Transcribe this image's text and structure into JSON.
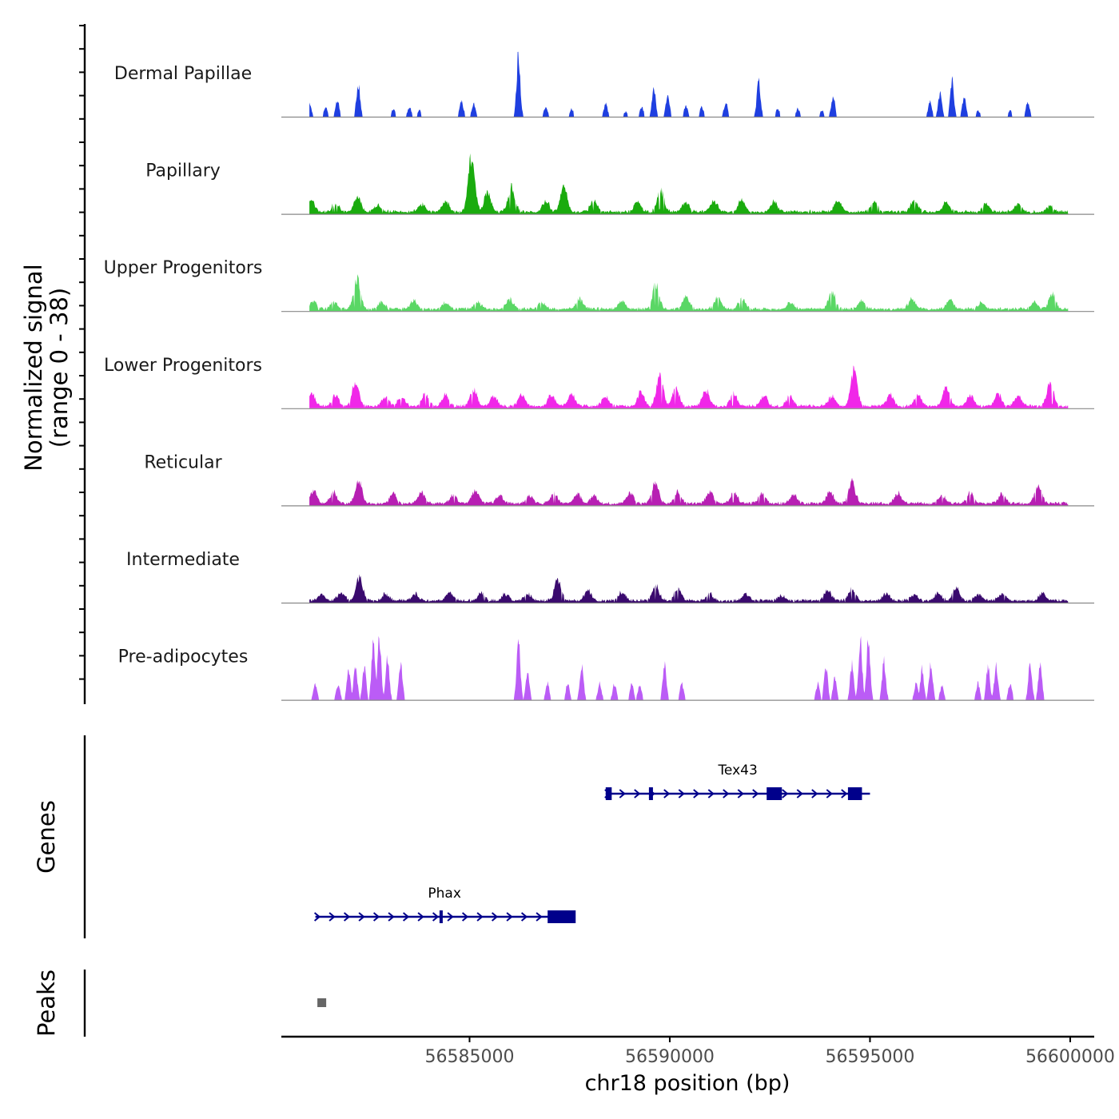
{
  "chart_data": {
    "type": "area",
    "title": "",
    "y_axis_label": "Normalized signal",
    "y_axis_sublabel": "(range 0 - 38)",
    "ylim": [
      0,
      38
    ],
    "xlabel": "chr18 position (bp)",
    "xlim": [
      56580300,
      56600600
    ],
    "x_ticks": [
      56585000,
      56590000,
      56595000,
      56600000
    ],
    "x_tick_labels": [
      "56585000",
      "56590000",
      "56595000",
      "56600000"
    ],
    "tracks": [
      {
        "name": "Dermal Papillae",
        "color": "#1f3fe0",
        "peaks": [
          [
            56581000,
            9
          ],
          [
            56581400,
            6
          ],
          [
            56581700,
            10
          ],
          [
            56582220,
            21
          ],
          [
            56583100,
            5
          ],
          [
            56583500,
            6
          ],
          [
            56583750,
            4
          ],
          [
            56584800,
            10
          ],
          [
            56585100,
            8
          ],
          [
            56586220,
            38
          ],
          [
            56586900,
            6
          ],
          [
            56587550,
            5
          ],
          [
            56588400,
            8
          ],
          [
            56588900,
            3
          ],
          [
            56589300,
            6
          ],
          [
            56589600,
            18
          ],
          [
            56589950,
            13
          ],
          [
            56590400,
            7
          ],
          [
            56590800,
            6
          ],
          [
            56591400,
            9
          ],
          [
            56592220,
            22
          ],
          [
            56592700,
            5
          ],
          [
            56593200,
            5
          ],
          [
            56593800,
            4
          ],
          [
            56594080,
            13
          ],
          [
            56596500,
            9
          ],
          [
            56596750,
            14
          ],
          [
            56597050,
            22
          ],
          [
            56597350,
            12
          ],
          [
            56597700,
            4
          ],
          [
            56598500,
            4
          ],
          [
            56598940,
            9
          ]
        ]
      },
      {
        "name": "Papillary",
        "color": "#1aab0e",
        "peaks": [
          [
            56581050,
            7
          ],
          [
            56581650,
            5
          ],
          [
            56582200,
            9
          ],
          [
            56582700,
            4
          ],
          [
            56583800,
            5
          ],
          [
            56584400,
            7
          ],
          [
            56585050,
            33
          ],
          [
            56585450,
            12
          ],
          [
            56586050,
            15
          ],
          [
            56586900,
            7
          ],
          [
            56587350,
            16
          ],
          [
            56588100,
            7
          ],
          [
            56589200,
            6
          ],
          [
            56589770,
            13
          ],
          [
            56590400,
            6
          ],
          [
            56591100,
            7
          ],
          [
            56591800,
            7
          ],
          [
            56592600,
            6
          ],
          [
            56594200,
            7
          ],
          [
            56595100,
            6
          ],
          [
            56596100,
            7
          ],
          [
            56596900,
            6
          ],
          [
            56597900,
            5
          ],
          [
            56598700,
            5
          ],
          [
            56599500,
            3
          ]
        ]
      },
      {
        "name": "Upper Progenitors",
        "color": "#5ad765",
        "peaks": [
          [
            56581100,
            5
          ],
          [
            56581600,
            4
          ],
          [
            56582190,
            18
          ],
          [
            56582800,
            4
          ],
          [
            56583600,
            5
          ],
          [
            56584400,
            4
          ],
          [
            56585200,
            4
          ],
          [
            56586000,
            6
          ],
          [
            56586800,
            4
          ],
          [
            56587750,
            6
          ],
          [
            56588800,
            5
          ],
          [
            56589650,
            15
          ],
          [
            56590400,
            8
          ],
          [
            56591200,
            7
          ],
          [
            56591800,
            6
          ],
          [
            56593000,
            4
          ],
          [
            56594050,
            10
          ],
          [
            56594800,
            5
          ],
          [
            56596050,
            6
          ],
          [
            56597000,
            6
          ],
          [
            56597800,
            4
          ],
          [
            56599100,
            4
          ],
          [
            56599550,
            9
          ]
        ]
      },
      {
        "name": "Lower Progenitors",
        "color": "#f027e8",
        "peaks": [
          [
            56581050,
            8
          ],
          [
            56581650,
            7
          ],
          [
            56582150,
            15
          ],
          [
            56582900,
            6
          ],
          [
            56583300,
            6
          ],
          [
            56583900,
            8
          ],
          [
            56584400,
            7
          ],
          [
            56585100,
            11
          ],
          [
            56585600,
            6
          ],
          [
            56586300,
            7
          ],
          [
            56587050,
            7
          ],
          [
            56587550,
            8
          ],
          [
            56588400,
            6
          ],
          [
            56589280,
            9
          ],
          [
            56589750,
            18
          ],
          [
            56590150,
            11
          ],
          [
            56590900,
            10
          ],
          [
            56591600,
            8
          ],
          [
            56592350,
            7
          ],
          [
            56593000,
            6
          ],
          [
            56594050,
            6
          ],
          [
            56594600,
            22
          ],
          [
            56595500,
            7
          ],
          [
            56596200,
            7
          ],
          [
            56596900,
            12
          ],
          [
            56597500,
            7
          ],
          [
            56598200,
            7
          ],
          [
            56598700,
            7
          ],
          [
            56599500,
            14
          ]
        ]
      },
      {
        "name": "Reticular",
        "color": "#b71fb3",
        "peaks": [
          [
            56581100,
            8
          ],
          [
            56581600,
            7
          ],
          [
            56582230,
            14
          ],
          [
            56583100,
            6
          ],
          [
            56583800,
            7
          ],
          [
            56584600,
            5
          ],
          [
            56585150,
            8
          ],
          [
            56585750,
            5
          ],
          [
            56586500,
            5
          ],
          [
            56587100,
            6
          ],
          [
            56587700,
            6
          ],
          [
            56588100,
            5
          ],
          [
            56589000,
            7
          ],
          [
            56589640,
            13
          ],
          [
            56590200,
            7
          ],
          [
            56591000,
            7
          ],
          [
            56591600,
            7
          ],
          [
            56592300,
            6
          ],
          [
            56593100,
            5
          ],
          [
            56594000,
            7
          ],
          [
            56594550,
            13
          ],
          [
            56595700,
            6
          ],
          [
            56596800,
            5
          ],
          [
            56597500,
            6
          ],
          [
            56598300,
            6
          ],
          [
            56599200,
            12
          ]
        ]
      },
      {
        "name": "Intermediate",
        "color": "#3a0a6e",
        "peaks": [
          [
            56581300,
            4
          ],
          [
            56581800,
            5
          ],
          [
            56582250,
            14
          ],
          [
            56582900,
            4
          ],
          [
            56583650,
            4
          ],
          [
            56584500,
            5
          ],
          [
            56585300,
            5
          ],
          [
            56585900,
            4
          ],
          [
            56586450,
            4
          ],
          [
            56587200,
            12
          ],
          [
            56587950,
            6
          ],
          [
            56588800,
            5
          ],
          [
            56589650,
            9
          ],
          [
            56590200,
            8
          ],
          [
            56591000,
            4
          ],
          [
            56591900,
            4
          ],
          [
            56592800,
            3
          ],
          [
            56593950,
            6
          ],
          [
            56594550,
            7
          ],
          [
            56595400,
            4
          ],
          [
            56596100,
            4
          ],
          [
            56596700,
            5
          ],
          [
            56597150,
            8
          ],
          [
            56597700,
            4
          ],
          [
            56598300,
            4
          ],
          [
            56599300,
            4
          ]
        ]
      },
      {
        "name": "Pre-adipocytes",
        "color": "#bb5cf6",
        "peaks": [
          [
            56581150,
            10
          ],
          [
            56581720,
            10
          ],
          [
            56581980,
            18
          ],
          [
            56582150,
            23
          ],
          [
            56582370,
            20
          ],
          [
            56582600,
            38
          ],
          [
            56582750,
            38
          ],
          [
            56582950,
            25
          ],
          [
            56583280,
            22
          ],
          [
            56586220,
            38
          ],
          [
            56586450,
            16
          ],
          [
            56586950,
            10
          ],
          [
            56587450,
            10
          ],
          [
            56587800,
            22
          ],
          [
            56588250,
            10
          ],
          [
            56588620,
            10
          ],
          [
            56589050,
            10
          ],
          [
            56589250,
            10
          ],
          [
            56589870,
            22
          ],
          [
            56590300,
            10
          ],
          [
            56593700,
            10
          ],
          [
            56593900,
            21
          ],
          [
            56594120,
            14
          ],
          [
            56594550,
            22
          ],
          [
            56594760,
            38
          ],
          [
            56594960,
            38
          ],
          [
            56595350,
            24
          ],
          [
            56596150,
            10
          ],
          [
            56596300,
            19
          ],
          [
            56596520,
            23
          ],
          [
            56596800,
            9
          ],
          [
            56597700,
            10
          ],
          [
            56597950,
            21
          ],
          [
            56598150,
            21
          ],
          [
            56598500,
            10
          ],
          [
            56599000,
            22
          ],
          [
            56599250,
            22
          ]
        ]
      }
    ],
    "genes_track_label": "Genes",
    "genes": [
      {
        "name": "Tex43",
        "strand": "+",
        "start": 56588400,
        "end": 56595000,
        "exons": [
          [
            56588400,
            56588550
          ],
          [
            56589480,
            56589580
          ],
          [
            56592420,
            56592800
          ],
          [
            56594450,
            56594800
          ]
        ]
      },
      {
        "name": "Phax",
        "strand": "+",
        "start": 56581150,
        "end": 56587600,
        "exons": [
          [
            56584250,
            56584330
          ],
          [
            56586950,
            56587650
          ]
        ]
      }
    ],
    "peaks_track_label": "Peaks",
    "peak_regions": [
      [
        56581200,
        56581420
      ]
    ]
  }
}
